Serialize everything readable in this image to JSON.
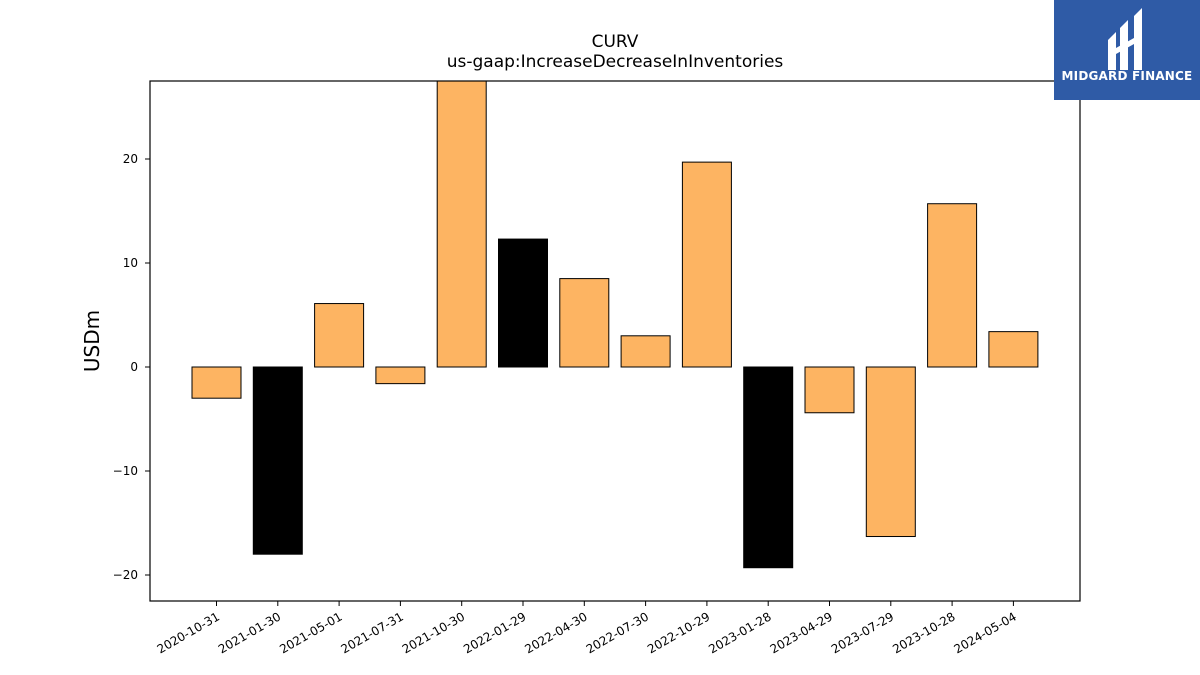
{
  "chart_data": {
    "type": "bar",
    "title": "CURV",
    "subtitle": "us-gaap:IncreaseDecreaseInInventories",
    "xlabel": "",
    "ylabel": "USDm",
    "ylim": [
      -22.5,
      27.5
    ],
    "yticks": [
      -20,
      -10,
      0,
      10,
      20
    ],
    "ytick_labels": [
      "−20",
      "−10",
      "0",
      "10",
      "20"
    ],
    "grid": false,
    "categories": [
      "2020-10-31",
      "2021-01-30",
      "2021-05-01",
      "2021-07-31",
      "2021-10-30",
      "2022-01-29",
      "2022-04-30",
      "2022-07-30",
      "2022-10-29",
      "2023-01-28",
      "2023-04-29",
      "2023-07-29",
      "2023-10-28",
      "2024-05-04"
    ],
    "values": [
      -3.0,
      -18.0,
      6.1,
      -1.6,
      30.0,
      12.3,
      8.5,
      3.0,
      19.7,
      -19.3,
      -4.4,
      -16.3,
      15.7,
      3.4
    ],
    "highlight": [
      false,
      true,
      false,
      false,
      false,
      true,
      false,
      false,
      false,
      true,
      false,
      false,
      false,
      false
    ],
    "colors": {
      "default": "#fdb462",
      "highlight": "#000000",
      "edge": "#000000"
    }
  },
  "logo": {
    "text": "MIDGARD FINANCE",
    "background": "#2f5ba6"
  }
}
